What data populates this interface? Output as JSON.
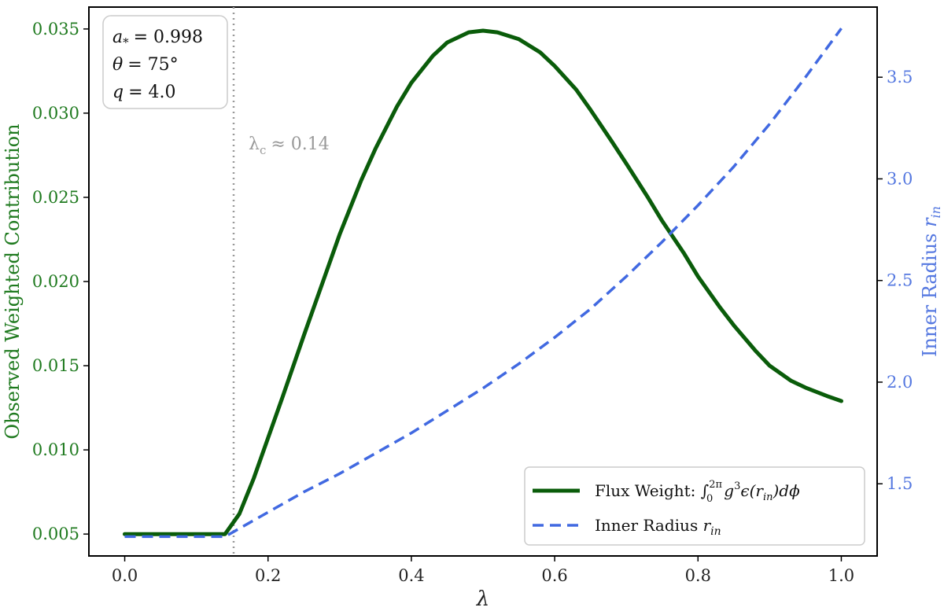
{
  "chart_data": {
    "type": "line",
    "xlabel": "λ",
    "ylabel_left": "Observed Weighted Contribution",
    "ylabel_right": "Inner Radius r_in",
    "xlim": [
      -0.05,
      1.05
    ],
    "ylim_left": [
      0.0037,
      0.0363
    ],
    "ylim_right": [
      1.145,
      3.845
    ],
    "x_ticks": [
      "0.0",
      "0.2",
      "0.4",
      "0.6",
      "0.8",
      "1.0"
    ],
    "y_ticks_left": [
      "0.005",
      "0.010",
      "0.015",
      "0.020",
      "0.025",
      "0.030",
      "0.035"
    ],
    "y_ticks_right": [
      "1.5",
      "2.0",
      "2.5",
      "3.0",
      "3.5"
    ],
    "grid": false,
    "legend_position": "lower-right",
    "series": [
      {
        "name": "Flux Weight: ∫₀²π g³ε(r_in)dϕ",
        "axis": "left",
        "color": "#0a5c0a",
        "style": "solid",
        "x": [
          0.0,
          0.05,
          0.1,
          0.14,
          0.16,
          0.18,
          0.2,
          0.22,
          0.25,
          0.28,
          0.3,
          0.33,
          0.35,
          0.38,
          0.4,
          0.43,
          0.45,
          0.48,
          0.5,
          0.52,
          0.55,
          0.58,
          0.6,
          0.63,
          0.65,
          0.68,
          0.7,
          0.73,
          0.75,
          0.78,
          0.8,
          0.83,
          0.85,
          0.88,
          0.9,
          0.93,
          0.95,
          0.98,
          1.0
        ],
        "y": [
          0.005,
          0.005,
          0.005,
          0.005,
          0.0062,
          0.0083,
          0.0107,
          0.0131,
          0.0168,
          0.0204,
          0.0228,
          0.026,
          0.0279,
          0.0304,
          0.0318,
          0.0334,
          0.0342,
          0.0348,
          0.0349,
          0.0348,
          0.0344,
          0.0336,
          0.0328,
          0.0314,
          0.0302,
          0.0283,
          0.027,
          0.025,
          0.0236,
          0.0217,
          0.0203,
          0.0185,
          0.0174,
          0.0159,
          0.015,
          0.0141,
          0.0137,
          0.0132,
          0.0129
        ]
      },
      {
        "name": "Inner Radius r_in",
        "axis": "right",
        "color": "#4169e1",
        "style": "dashed",
        "x": [
          0.0,
          0.05,
          0.1,
          0.14,
          0.2,
          0.25,
          0.3,
          0.35,
          0.4,
          0.45,
          0.5,
          0.55,
          0.6,
          0.65,
          0.7,
          0.75,
          0.8,
          0.85,
          0.9,
          0.95,
          1.0
        ],
        "y": [
          1.24,
          1.24,
          1.24,
          1.24,
          1.36,
          1.46,
          1.55,
          1.65,
          1.75,
          1.86,
          1.97,
          2.09,
          2.22,
          2.36,
          2.52,
          2.69,
          2.87,
          3.06,
          3.27,
          3.5,
          3.74
        ]
      }
    ],
    "annotations": {
      "critical_line_x": 0.152,
      "critical_label": "λ",
      "critical_label_sub": "c",
      "critical_label_value": "≈ 0.14",
      "parameters": [
        {
          "symbol": "a",
          "sub": "*",
          "sup": "",
          "value": "= 0.998"
        },
        {
          "symbol": "θ",
          "sub": "",
          "sup": "",
          "value": "= 75°"
        },
        {
          "symbol": "q",
          "sub": "",
          "sup": "",
          "value": "= 4.0"
        }
      ]
    },
    "legend": [
      {
        "label": "Flux Weight: ∫",
        "integral_lower": "0",
        "integral_upper": "2π",
        "expr_main": "g",
        "expr_pow": "3",
        "expr_rest": "ϵ(r",
        "expr_sub": "in",
        "expr_end": ")dϕ"
      },
      {
        "label": "Inner Radius ",
        "var": "r",
        "sub": "in"
      }
    ]
  }
}
